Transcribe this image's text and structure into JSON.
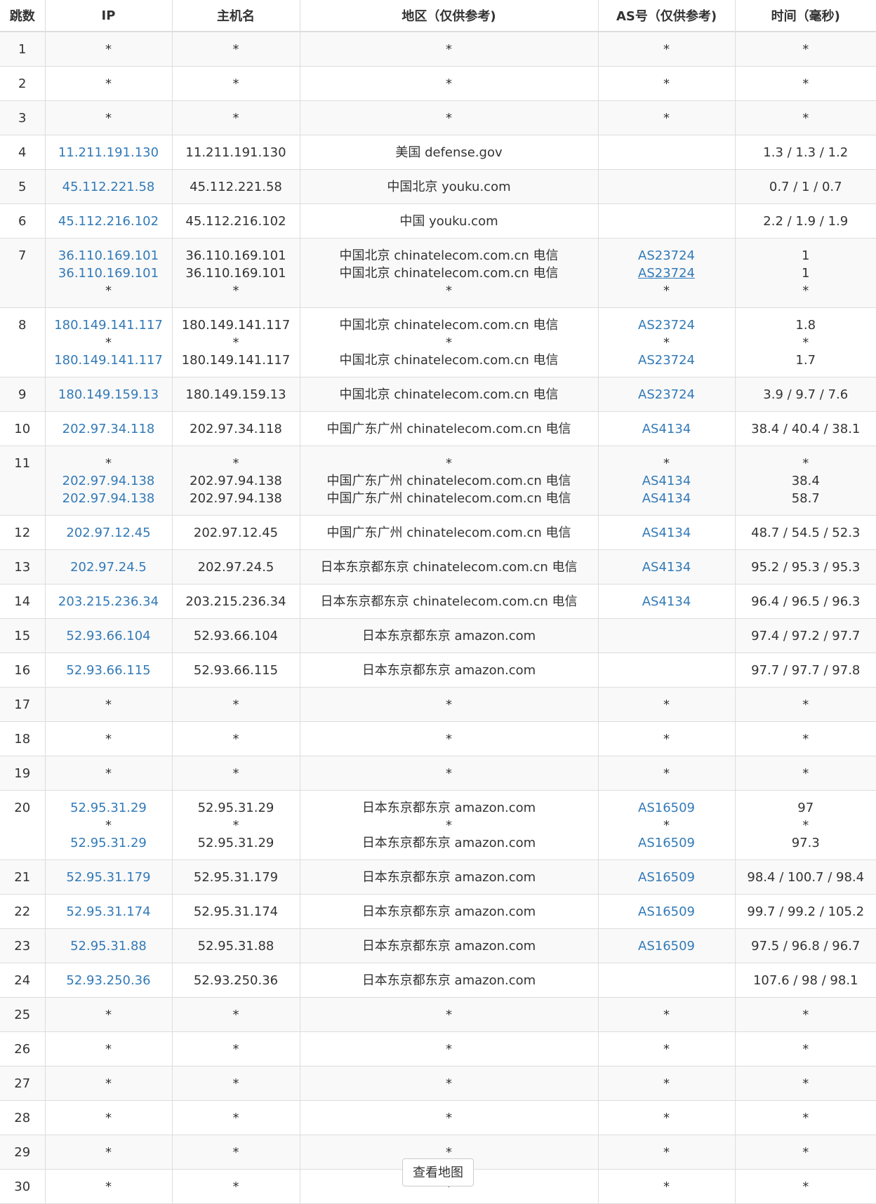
{
  "headers": [
    "跳数",
    "IP",
    "主机名",
    "地区（仅供参考)",
    "AS号（仅供参考)",
    "时间（毫秒)"
  ],
  "rows": [
    {
      "hop": "1",
      "lines": [
        {
          "ip": "*",
          "host": "*",
          "region": "*",
          "asn": "*",
          "time": "*"
        }
      ]
    },
    {
      "hop": "2",
      "lines": [
        {
          "ip": "*",
          "host": "*",
          "region": "*",
          "asn": "*",
          "time": "*"
        }
      ]
    },
    {
      "hop": "3",
      "lines": [
        {
          "ip": "*",
          "host": "*",
          "region": "*",
          "asn": "*",
          "time": "*"
        }
      ]
    },
    {
      "hop": "4",
      "lines": [
        {
          "ip": "11.211.191.130",
          "host": "11.211.191.130",
          "region": "美国 defense.gov",
          "asn": "",
          "time": "1.3 / 1.3 / 1.2"
        }
      ]
    },
    {
      "hop": "5",
      "lines": [
        {
          "ip": "45.112.221.58",
          "host": "45.112.221.58",
          "region": "中国北京 youku.com",
          "asn": "",
          "time": "0.7 / 1 / 0.7"
        }
      ]
    },
    {
      "hop": "6",
      "lines": [
        {
          "ip": "45.112.216.102",
          "host": "45.112.216.102",
          "region": "中国 youku.com",
          "asn": "",
          "time": "2.2 / 1.9 / 1.9"
        }
      ]
    },
    {
      "hop": "7",
      "lines": [
        {
          "ip": "36.110.169.101",
          "host": "36.110.169.101",
          "region": "中国北京 chinatelecom.com.cn 电信",
          "asn": "AS23724",
          "time": "1"
        },
        {
          "ip": "36.110.169.101",
          "host": "36.110.169.101",
          "region": "中国北京 chinatelecom.com.cn 电信",
          "asn": "AS23724",
          "time": "1"
        },
        {
          "ip": "*",
          "host": "*",
          "region": "*",
          "asn": "*",
          "time": "*"
        }
      ]
    },
    {
      "hop": "8",
      "lines": [
        {
          "ip": "180.149.141.117",
          "host": "180.149.141.117",
          "region": "中国北京 chinatelecom.com.cn 电信",
          "asn": "AS23724",
          "time": "1.8"
        },
        {
          "ip": "*",
          "host": "*",
          "region": "*",
          "asn": "*",
          "time": "*"
        },
        {
          "ip": "180.149.141.117",
          "host": "180.149.141.117",
          "region": "中国北京 chinatelecom.com.cn 电信",
          "asn": "AS23724",
          "time": "1.7"
        }
      ]
    },
    {
      "hop": "9",
      "lines": [
        {
          "ip": "180.149.159.13",
          "host": "180.149.159.13",
          "region": "中国北京 chinatelecom.com.cn 电信",
          "asn": "AS23724",
          "time": "3.9 / 9.7 / 7.6"
        }
      ]
    },
    {
      "hop": "10",
      "lines": [
        {
          "ip": "202.97.34.118",
          "host": "202.97.34.118",
          "region": "中国广东广州 chinatelecom.com.cn 电信",
          "asn": "AS4134",
          "time": "38.4 / 40.4 / 38.1"
        }
      ]
    },
    {
      "hop": "11",
      "lines": [
        {
          "ip": "*",
          "host": "*",
          "region": "*",
          "asn": "*",
          "time": "*"
        },
        {
          "ip": "202.97.94.138",
          "host": "202.97.94.138",
          "region": "中国广东广州 chinatelecom.com.cn 电信",
          "asn": "AS4134",
          "time": "38.4"
        },
        {
          "ip": "202.97.94.138",
          "host": "202.97.94.138",
          "region": "中国广东广州 chinatelecom.com.cn 电信",
          "asn": "AS4134",
          "time": "58.7"
        }
      ]
    },
    {
      "hop": "12",
      "lines": [
        {
          "ip": "202.97.12.45",
          "host": "202.97.12.45",
          "region": "中国广东广州 chinatelecom.com.cn 电信",
          "asn": "AS4134",
          "time": "48.7 / 54.5 / 52.3"
        }
      ]
    },
    {
      "hop": "13",
      "lines": [
        {
          "ip": "202.97.24.5",
          "host": "202.97.24.5",
          "region": "日本东京都东京 chinatelecom.com.cn 电信",
          "asn": "AS4134",
          "time": "95.2 / 95.3 / 95.3"
        }
      ]
    },
    {
      "hop": "14",
      "lines": [
        {
          "ip": "203.215.236.34",
          "host": "203.215.236.34",
          "region": "日本东京都东京 chinatelecom.com.cn 电信",
          "asn": "AS4134",
          "time": "96.4 / 96.5 / 96.3"
        }
      ]
    },
    {
      "hop": "15",
      "lines": [
        {
          "ip": "52.93.66.104",
          "host": "52.93.66.104",
          "region": "日本东京都东京 amazon.com",
          "asn": "",
          "time": "97.4 / 97.2 / 97.7"
        }
      ]
    },
    {
      "hop": "16",
      "lines": [
        {
          "ip": "52.93.66.115",
          "host": "52.93.66.115",
          "region": "日本东京都东京 amazon.com",
          "asn": "",
          "time": "97.7 / 97.7 / 97.8"
        }
      ]
    },
    {
      "hop": "17",
      "lines": [
        {
          "ip": "*",
          "host": "*",
          "region": "*",
          "asn": "*",
          "time": "*"
        }
      ]
    },
    {
      "hop": "18",
      "lines": [
        {
          "ip": "*",
          "host": "*",
          "region": "*",
          "asn": "*",
          "time": "*"
        }
      ]
    },
    {
      "hop": "19",
      "lines": [
        {
          "ip": "*",
          "host": "*",
          "region": "*",
          "asn": "*",
          "time": "*"
        }
      ]
    },
    {
      "hop": "20",
      "lines": [
        {
          "ip": "52.95.31.29",
          "host": "52.95.31.29",
          "region": "日本东京都东京 amazon.com",
          "asn": "AS16509",
          "time": "97"
        },
        {
          "ip": "*",
          "host": "*",
          "region": "*",
          "asn": "*",
          "time": "*"
        },
        {
          "ip": "52.95.31.29",
          "host": "52.95.31.29",
          "region": "日本东京都东京 amazon.com",
          "asn": "AS16509",
          "time": "97.3"
        }
      ]
    },
    {
      "hop": "21",
      "lines": [
        {
          "ip": "52.95.31.179",
          "host": "52.95.31.179",
          "region": "日本东京都东京 amazon.com",
          "asn": "AS16509",
          "time": "98.4 / 100.7 / 98.4"
        }
      ]
    },
    {
      "hop": "22",
      "lines": [
        {
          "ip": "52.95.31.174",
          "host": "52.95.31.174",
          "region": "日本东京都东京 amazon.com",
          "asn": "AS16509",
          "time": "99.7 / 99.2 / 105.2"
        }
      ]
    },
    {
      "hop": "23",
      "lines": [
        {
          "ip": "52.95.31.88",
          "host": "52.95.31.88",
          "region": "日本东京都东京 amazon.com",
          "asn": "AS16509",
          "time": "97.5 / 96.8 / 96.7"
        }
      ]
    },
    {
      "hop": "24",
      "lines": [
        {
          "ip": "52.93.250.36",
          "host": "52.93.250.36",
          "region": "日本东京都东京 amazon.com",
          "asn": "",
          "time": "107.6 / 98 / 98.1"
        }
      ]
    },
    {
      "hop": "25",
      "lines": [
        {
          "ip": "*",
          "host": "*",
          "region": "*",
          "asn": "*",
          "time": "*"
        }
      ]
    },
    {
      "hop": "26",
      "lines": [
        {
          "ip": "*",
          "host": "*",
          "region": "*",
          "asn": "*",
          "time": "*"
        }
      ]
    },
    {
      "hop": "27",
      "lines": [
        {
          "ip": "*",
          "host": "*",
          "region": "*",
          "asn": "*",
          "time": "*"
        }
      ]
    },
    {
      "hop": "28",
      "lines": [
        {
          "ip": "*",
          "host": "*",
          "region": "*",
          "asn": "*",
          "time": "*"
        }
      ]
    },
    {
      "hop": "29",
      "lines": [
        {
          "ip": "*",
          "host": "*",
          "region": "*",
          "asn": "*",
          "time": "*"
        }
      ]
    },
    {
      "hop": "30",
      "lines": [
        {
          "ip": "*",
          "host": "*",
          "region": "*",
          "asn": "*",
          "time": "*"
        }
      ]
    }
  ],
  "map_button": "查看地图",
  "colors": {
    "link": "#337ab7",
    "text": "#333333",
    "border": "#dddddd",
    "stripe": "#f9f9f9"
  }
}
